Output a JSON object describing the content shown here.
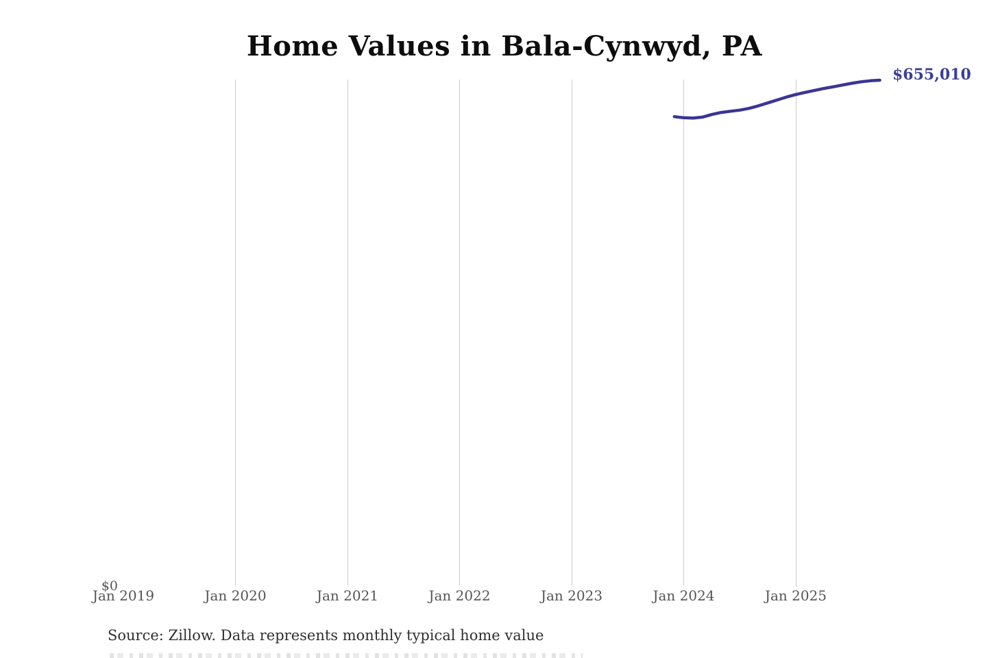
{
  "title": "Home Values in Bala-Cynwyd, PA",
  "source_note": "Source: Zillow. Data represents monthly typical home value",
  "colors": {
    "line": "#3b3693",
    "value_label": "#3b3e96",
    "gridline": "#cbcbcb",
    "axis_text": "#545454",
    "title_text": "#0d0d0d",
    "source_text": "#2f2f2f",
    "background": "#ffffff"
  },
  "chart_data": {
    "type": "line",
    "title": "Home Values in Bala-Cynwyd, PA",
    "xlabel": "",
    "ylabel": "",
    "grid": "vertical-only",
    "legend_position": "none",
    "ylim": [
      0,
      655010
    ],
    "y_zero_label": "$0",
    "end_label": "$655,010",
    "latest_value": 655010,
    "x_ticks": [
      {
        "label": "Jan 2019",
        "gridline": false
      },
      {
        "label": "Jan 2020",
        "gridline": true
      },
      {
        "label": "Jan 2021",
        "gridline": true
      },
      {
        "label": "Jan 2022",
        "gridline": true
      },
      {
        "label": "Jan 2023",
        "gridline": true
      },
      {
        "label": "Jan 2024",
        "gridline": true
      },
      {
        "label": "Jan 2025",
        "gridline": true
      }
    ],
    "series": [
      {
        "name": "Monthly typical home value",
        "points": [
          {
            "date": "2023-12",
            "value": 607800
          },
          {
            "date": "2024-01",
            "value": 606400
          },
          {
            "date": "2024-02",
            "value": 605900
          },
          {
            "date": "2024-03",
            "value": 607200
          },
          {
            "date": "2024-04",
            "value": 610500
          },
          {
            "date": "2024-05",
            "value": 613200
          },
          {
            "date": "2024-06",
            "value": 614800
          },
          {
            "date": "2024-07",
            "value": 616200
          },
          {
            "date": "2024-08",
            "value": 618500
          },
          {
            "date": "2024-09",
            "value": 621800
          },
          {
            "date": "2024-10",
            "value": 625500
          },
          {
            "date": "2024-11",
            "value": 629400
          },
          {
            "date": "2024-12",
            "value": 633200
          },
          {
            "date": "2025-01",
            "value": 636500
          },
          {
            "date": "2025-02",
            "value": 639200
          },
          {
            "date": "2025-03",
            "value": 641800
          },
          {
            "date": "2025-04",
            "value": 644300
          },
          {
            "date": "2025-05",
            "value": 646400
          },
          {
            "date": "2025-06",
            "value": 648700
          },
          {
            "date": "2025-07",
            "value": 651000
          },
          {
            "date": "2025-08",
            "value": 653000
          },
          {
            "date": "2025-09",
            "value": 654300
          },
          {
            "date": "2025-10",
            "value": 655010
          }
        ]
      }
    ]
  }
}
